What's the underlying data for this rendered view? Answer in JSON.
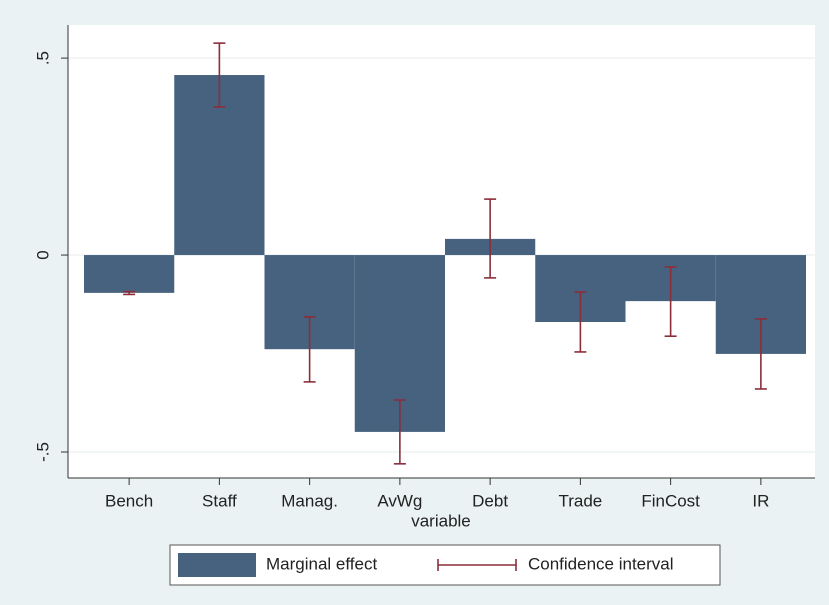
{
  "chart_data": {
    "type": "bar",
    "categories": [
      "Bench",
      "Staff",
      "Manag.",
      "AvWg",
      "Debt",
      "Trade",
      "FinCost",
      "IR"
    ],
    "x_label": "variable",
    "series": [
      {
        "name": "Marginal effect",
        "color": "#46627f",
        "values": [
          -0.096,
          0.457,
          -0.239,
          -0.449,
          0.041,
          -0.17,
          -0.117,
          -0.251
        ]
      },
      {
        "name": "Confidence interval",
        "color": "#8b2e3a",
        "low": [
          -0.1,
          0.376,
          -0.322,
          -0.53,
          -0.058,
          -0.246,
          -0.206,
          -0.34
        ],
        "high": [
          -0.093,
          0.538,
          -0.157,
          -0.368,
          0.142,
          -0.094,
          -0.03,
          -0.162
        ]
      }
    ],
    "ylim": [
      -0.566,
      0.584
    ],
    "yticks": [
      {
        "value": -0.5,
        "label": "-.5"
      },
      0,
      {
        "value": 0.5,
        "label": ".5"
      }
    ],
    "grid": true,
    "legend": "bottom"
  }
}
